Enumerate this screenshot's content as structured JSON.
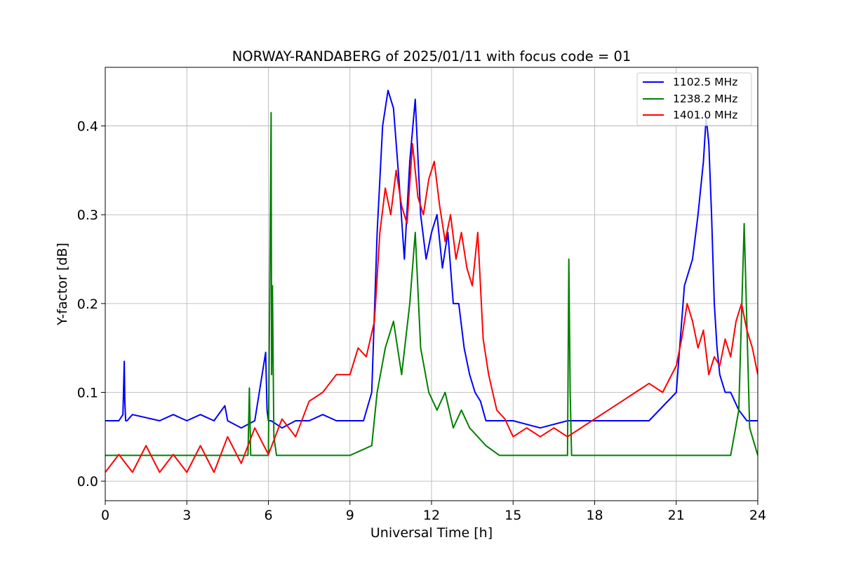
{
  "chart_data": {
    "type": "line",
    "title": "NORWAY-RANDABERG of 2025/01/11 with focus code = 01",
    "xlabel": "Universal Time [h]",
    "ylabel": "Y-factor [dB]",
    "xlim": [
      0,
      24
    ],
    "ylim": [
      -0.022,
      0.466
    ],
    "xticks": [
      0,
      3,
      6,
      9,
      12,
      15,
      18,
      21,
      24
    ],
    "xtick_labels": [
      "0",
      "3",
      "6",
      "9",
      "12",
      "15",
      "18",
      "21",
      "24"
    ],
    "yticks": [
      0.0,
      0.1,
      0.2,
      0.3,
      0.4
    ],
    "ytick_labels": [
      "0.0",
      "0.1",
      "0.2",
      "0.3",
      "0.4"
    ],
    "grid": true,
    "legend_position": "top-right",
    "series": [
      {
        "name": "1102.5 MHz",
        "color": "#0000ff",
        "x": [
          0,
          0.5,
          0.65,
          0.7,
          0.72,
          0.75,
          0.8,
          1,
          2,
          2.5,
          3,
          3.5,
          4,
          4.4,
          4.5,
          5,
          5.5,
          5.9,
          5.95,
          6.0,
          6.1,
          6.5,
          7,
          7.5,
          8,
          8.5,
          9,
          9.5,
          9.8,
          10.0,
          10.2,
          10.4,
          10.6,
          10.8,
          11.0,
          11.2,
          11.4,
          11.6,
          11.8,
          12.0,
          12.2,
          12.4,
          12.6,
          12.8,
          13.0,
          13.2,
          13.4,
          13.6,
          13.8,
          14.0,
          14.3,
          14.6,
          15,
          16,
          17,
          18,
          19,
          20,
          21,
          21.3,
          21.6,
          21.8,
          22.0,
          22.1,
          22.2,
          22.3,
          22.4,
          22.5,
          22.6,
          22.8,
          23.0,
          23.3,
          23.6,
          24
        ],
        "values": [
          0.068,
          0.068,
          0.075,
          0.135,
          0.09,
          0.068,
          0.068,
          0.075,
          0.068,
          0.075,
          0.068,
          0.075,
          0.068,
          0.085,
          0.068,
          0.06,
          0.068,
          0.145,
          0.08,
          0.068,
          0.068,
          0.06,
          0.068,
          0.068,
          0.075,
          0.068,
          0.068,
          0.068,
          0.1,
          0.28,
          0.4,
          0.44,
          0.42,
          0.34,
          0.25,
          0.36,
          0.43,
          0.3,
          0.25,
          0.28,
          0.3,
          0.24,
          0.28,
          0.2,
          0.2,
          0.15,
          0.12,
          0.1,
          0.09,
          0.068,
          0.068,
          0.068,
          0.068,
          0.06,
          0.068,
          0.068,
          0.068,
          0.068,
          0.1,
          0.22,
          0.25,
          0.3,
          0.36,
          0.41,
          0.38,
          0.3,
          0.2,
          0.15,
          0.12,
          0.1,
          0.1,
          0.08,
          0.068,
          0.068
        ]
      },
      {
        "name": "1238.2 MHz",
        "color": "#008000",
        "x": [
          0,
          1,
          2,
          3,
          4,
          5,
          5.25,
          5.3,
          5.35,
          5.5,
          6.0,
          6.08,
          6.1,
          6.12,
          6.15,
          6.2,
          6.3,
          7,
          8,
          9,
          9.8,
          10.0,
          10.3,
          10.6,
          10.9,
          11.2,
          11.4,
          11.6,
          11.9,
          12.2,
          12.5,
          12.8,
          13.1,
          13.4,
          13.7,
          14.0,
          14.5,
          15,
          16,
          17.0,
          17.05,
          17.1,
          17.15,
          18,
          19,
          20,
          21,
          22,
          23,
          23.3,
          23.5,
          23.7,
          24
        ],
        "values": [
          0.029,
          0.029,
          0.029,
          0.029,
          0.029,
          0.029,
          0.029,
          0.105,
          0.029,
          0.029,
          0.029,
          0.33,
          0.415,
          0.12,
          0.22,
          0.05,
          0.029,
          0.029,
          0.029,
          0.029,
          0.04,
          0.1,
          0.15,
          0.18,
          0.12,
          0.2,
          0.28,
          0.15,
          0.1,
          0.08,
          0.1,
          0.06,
          0.08,
          0.06,
          0.05,
          0.04,
          0.029,
          0.029,
          0.029,
          0.029,
          0.25,
          0.1,
          0.029,
          0.029,
          0.029,
          0.029,
          0.029,
          0.029,
          0.029,
          0.08,
          0.29,
          0.06,
          0.029
        ]
      },
      {
        "name": "1401.0 MHz",
        "color": "#ff0000",
        "x": [
          0,
          0.5,
          1,
          1.5,
          2,
          2.5,
          3,
          3.5,
          4,
          4.5,
          5,
          5.5,
          6,
          6.5,
          7,
          7.5,
          8,
          8.5,
          9,
          9.3,
          9.6,
          9.9,
          10.1,
          10.3,
          10.5,
          10.7,
          10.9,
          11.1,
          11.3,
          11.5,
          11.7,
          11.9,
          12.1,
          12.3,
          12.5,
          12.7,
          12.9,
          13.1,
          13.3,
          13.5,
          13.7,
          13.9,
          14.1,
          14.4,
          14.7,
          15,
          15.5,
          16,
          16.5,
          17,
          17.5,
          18,
          18.5,
          19,
          19.5,
          20,
          20.5,
          21,
          21.2,
          21.4,
          21.6,
          21.8,
          22.0,
          22.2,
          22.4,
          22.6,
          22.8,
          23.0,
          23.2,
          23.4,
          23.6,
          23.8,
          24
        ],
        "values": [
          0.01,
          0.03,
          0.01,
          0.04,
          0.01,
          0.03,
          0.01,
          0.04,
          0.01,
          0.05,
          0.02,
          0.06,
          0.03,
          0.07,
          0.05,
          0.09,
          0.1,
          0.12,
          0.12,
          0.15,
          0.14,
          0.18,
          0.28,
          0.33,
          0.3,
          0.35,
          0.31,
          0.29,
          0.38,
          0.32,
          0.3,
          0.34,
          0.36,
          0.31,
          0.27,
          0.3,
          0.25,
          0.28,
          0.24,
          0.22,
          0.28,
          0.16,
          0.12,
          0.08,
          0.07,
          0.05,
          0.06,
          0.05,
          0.06,
          0.05,
          0.06,
          0.07,
          0.08,
          0.09,
          0.1,
          0.11,
          0.1,
          0.13,
          0.16,
          0.2,
          0.18,
          0.15,
          0.17,
          0.12,
          0.14,
          0.13,
          0.16,
          0.14,
          0.18,
          0.2,
          0.17,
          0.15,
          0.12
        ]
      }
    ]
  }
}
